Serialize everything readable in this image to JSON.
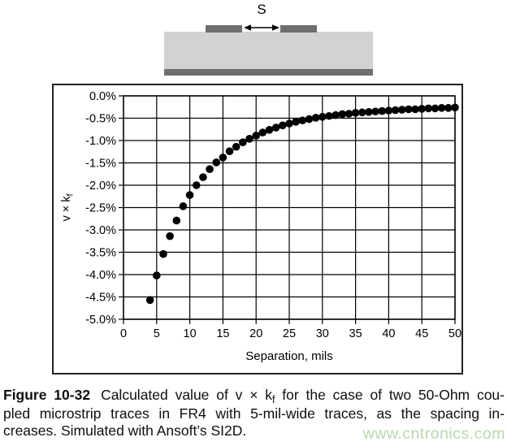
{
  "diagram": {
    "spacing_label": "S",
    "substrate_color": "#d2d2d2",
    "conductor_color": "#6e6e6e",
    "arrow_color": "#000000"
  },
  "chart_data": {
    "type": "scatter",
    "title": "",
    "xlabel": "Separation, mils",
    "ylabel": "v × kf",
    "ylabel_main": "v × k",
    "ylabel_sub": "f",
    "xlim": [
      0,
      50
    ],
    "ylim": [
      -5,
      0
    ],
    "grid": true,
    "legend": false,
    "marker_color": "#000000",
    "marker_radius_px": 4.8,
    "x_ticks": [
      0,
      5,
      10,
      15,
      20,
      25,
      30,
      35,
      40,
      45,
      50
    ],
    "x_tick_labels": [
      "0",
      "5",
      "10",
      "15",
      "20",
      "25",
      "30",
      "35",
      "40",
      "45",
      "50"
    ],
    "y_ticks": [
      0,
      -0.5,
      -1,
      -1.5,
      -2,
      -2.5,
      -3,
      -3.5,
      -4,
      -4.5,
      -5
    ],
    "y_tick_labels": [
      "0.0%",
      "-0.5%",
      "-1.0%",
      "-1.5%",
      "-2.0%",
      "-2.5%",
      "-3.0%",
      "-3.5%",
      "-4.0%",
      "-4.5%",
      "-5.0%"
    ],
    "x": [
      4,
      5,
      6,
      7,
      8,
      9,
      10,
      11,
      12,
      13,
      14,
      15,
      16,
      17,
      18,
      19,
      20,
      21,
      22,
      23,
      24,
      25,
      26,
      27,
      28,
      29,
      30,
      31,
      32,
      33,
      34,
      35,
      36,
      37,
      38,
      39,
      40,
      41,
      42,
      43,
      44,
      45,
      46,
      47,
      48,
      49,
      50
    ],
    "y": [
      -4.57,
      -4.02,
      -3.54,
      -3.14,
      -2.79,
      -2.47,
      -2.22,
      -2.0,
      -1.82,
      -1.64,
      -1.49,
      -1.38,
      -1.24,
      -1.14,
      -1.04,
      -0.96,
      -0.89,
      -0.82,
      -0.76,
      -0.71,
      -0.66,
      -0.62,
      -0.58,
      -0.55,
      -0.52,
      -0.49,
      -0.47,
      -0.45,
      -0.43,
      -0.41,
      -0.4,
      -0.38,
      -0.37,
      -0.36,
      -0.35,
      -0.34,
      -0.33,
      -0.32,
      -0.31,
      -0.3,
      -0.3,
      -0.29,
      -0.28,
      -0.28,
      -0.27,
      -0.27,
      -0.26
    ]
  },
  "caption": {
    "line1_bold": "Figure 10-32",
    "line1_a": "Calculated value of v × k",
    "line1_sub": "f",
    "line1_b": " for the case of two 50-Ohm cou-",
    "line2": "pled microstrip traces in FR4 with 5-mil-wide traces, as the spacing in-",
    "line3": "creases. Simulated with Ansoft’s SI2D."
  },
  "watermark": {
    "text": "www.cntronics.com",
    "color": "#b5d9aa"
  }
}
